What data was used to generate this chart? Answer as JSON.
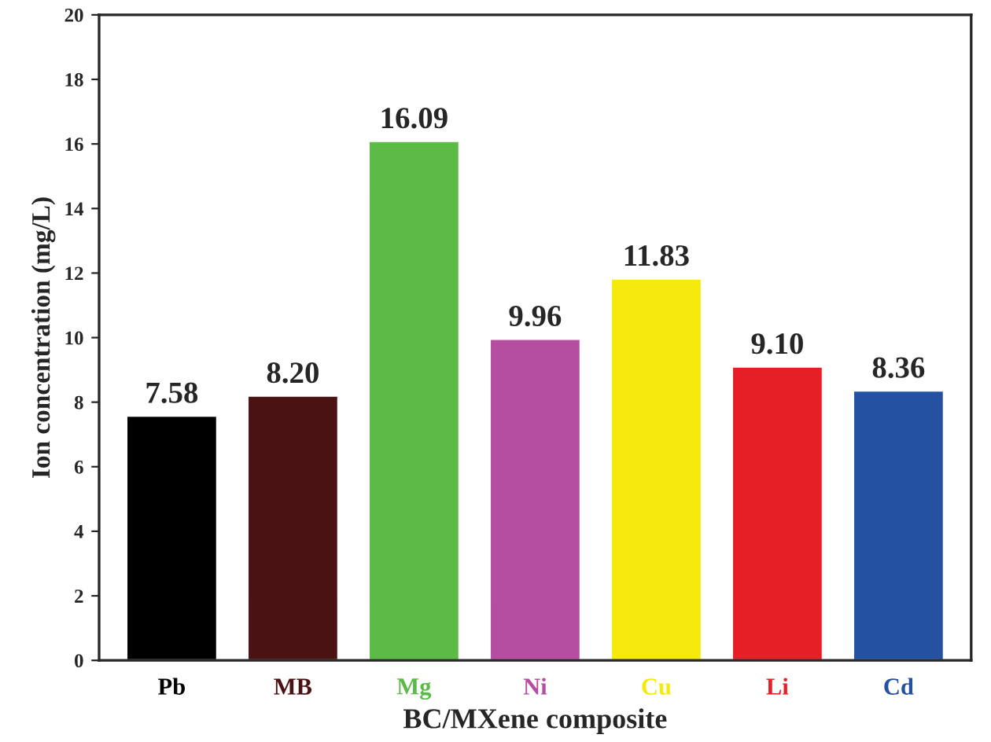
{
  "chart_data": {
    "type": "bar",
    "xlabel": "BC/MXene composite",
    "ylabel": "Ion concentration (mg/L)",
    "categories": [
      "Pb",
      "MB",
      "Mg",
      "Ni",
      "Cu",
      "Li",
      "Cd"
    ],
    "values": [
      7.58,
      8.2,
      16.09,
      9.96,
      11.83,
      9.1,
      8.36
    ],
    "colors": [
      "#000000",
      "#4a1212",
      "#5cbb47",
      "#b54ea0",
      "#f5ea0c",
      "#e61f26",
      "#2451a1"
    ],
    "ylim": [
      0,
      20
    ],
    "yticks": [
      0,
      2,
      4,
      6,
      8,
      10,
      12,
      14,
      16,
      18,
      20
    ],
    "value_labels": [
      "7.58",
      "8.20",
      "16.09",
      "9.96",
      "11.83",
      "9.10",
      "8.36"
    ],
    "grid": false
  }
}
